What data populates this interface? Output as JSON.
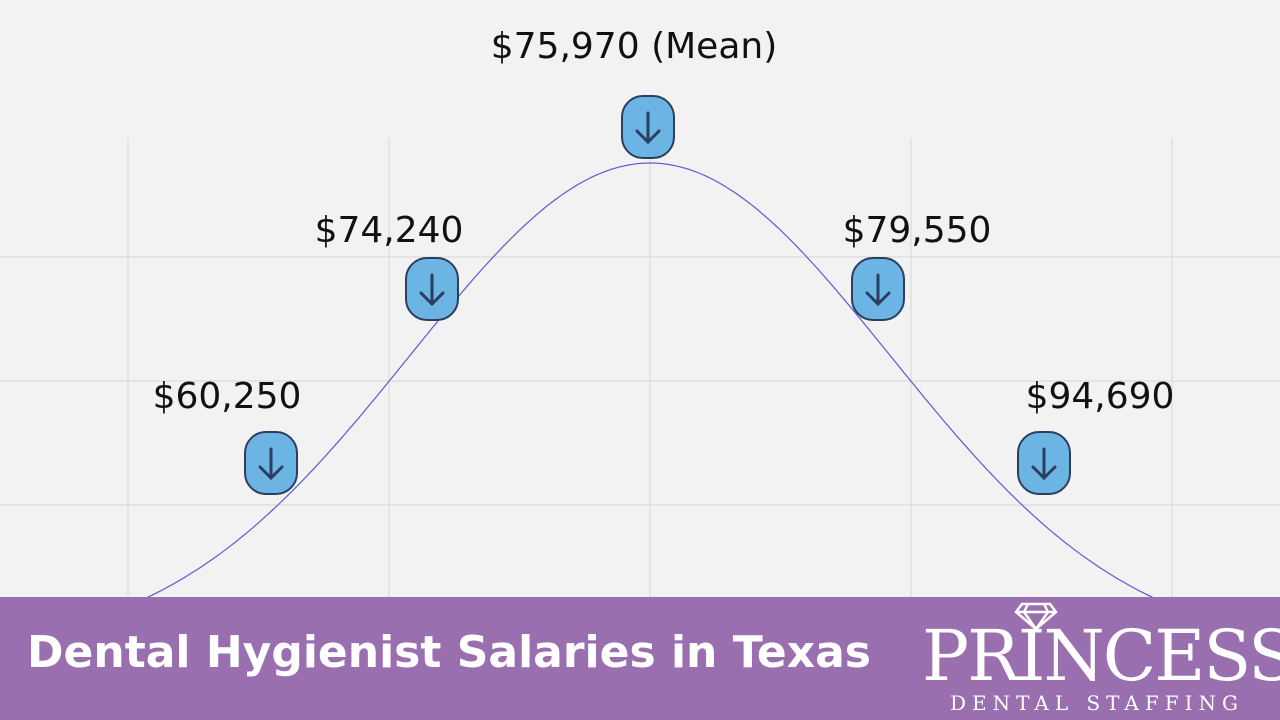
{
  "chart_data": {
    "type": "line",
    "title": "",
    "xlabel": "",
    "ylabel": "",
    "grid": true,
    "curve": "normal distribution",
    "line_color": "#5b5bd6",
    "marker_color": "#6cb4e4",
    "annotations": [
      {
        "label": "$60,250",
        "value": 60250,
        "position": "-2σ"
      },
      {
        "label": "$74,240",
        "value": 74240,
        "position": "-1σ"
      },
      {
        "label": "$75,970 (Mean)",
        "value": 75970,
        "position": "mean"
      },
      {
        "label": "$79,550",
        "value": 79550,
        "position": "+1σ"
      },
      {
        "label": "$94,690",
        "value": 94690,
        "position": "+2σ"
      }
    ]
  },
  "footer": {
    "title": "Dental Hygienist Salaries in Texas",
    "background": "#9a6fb0",
    "logo": {
      "name": "PRINCESS",
      "tagline": "DENTAL STAFFING"
    }
  }
}
